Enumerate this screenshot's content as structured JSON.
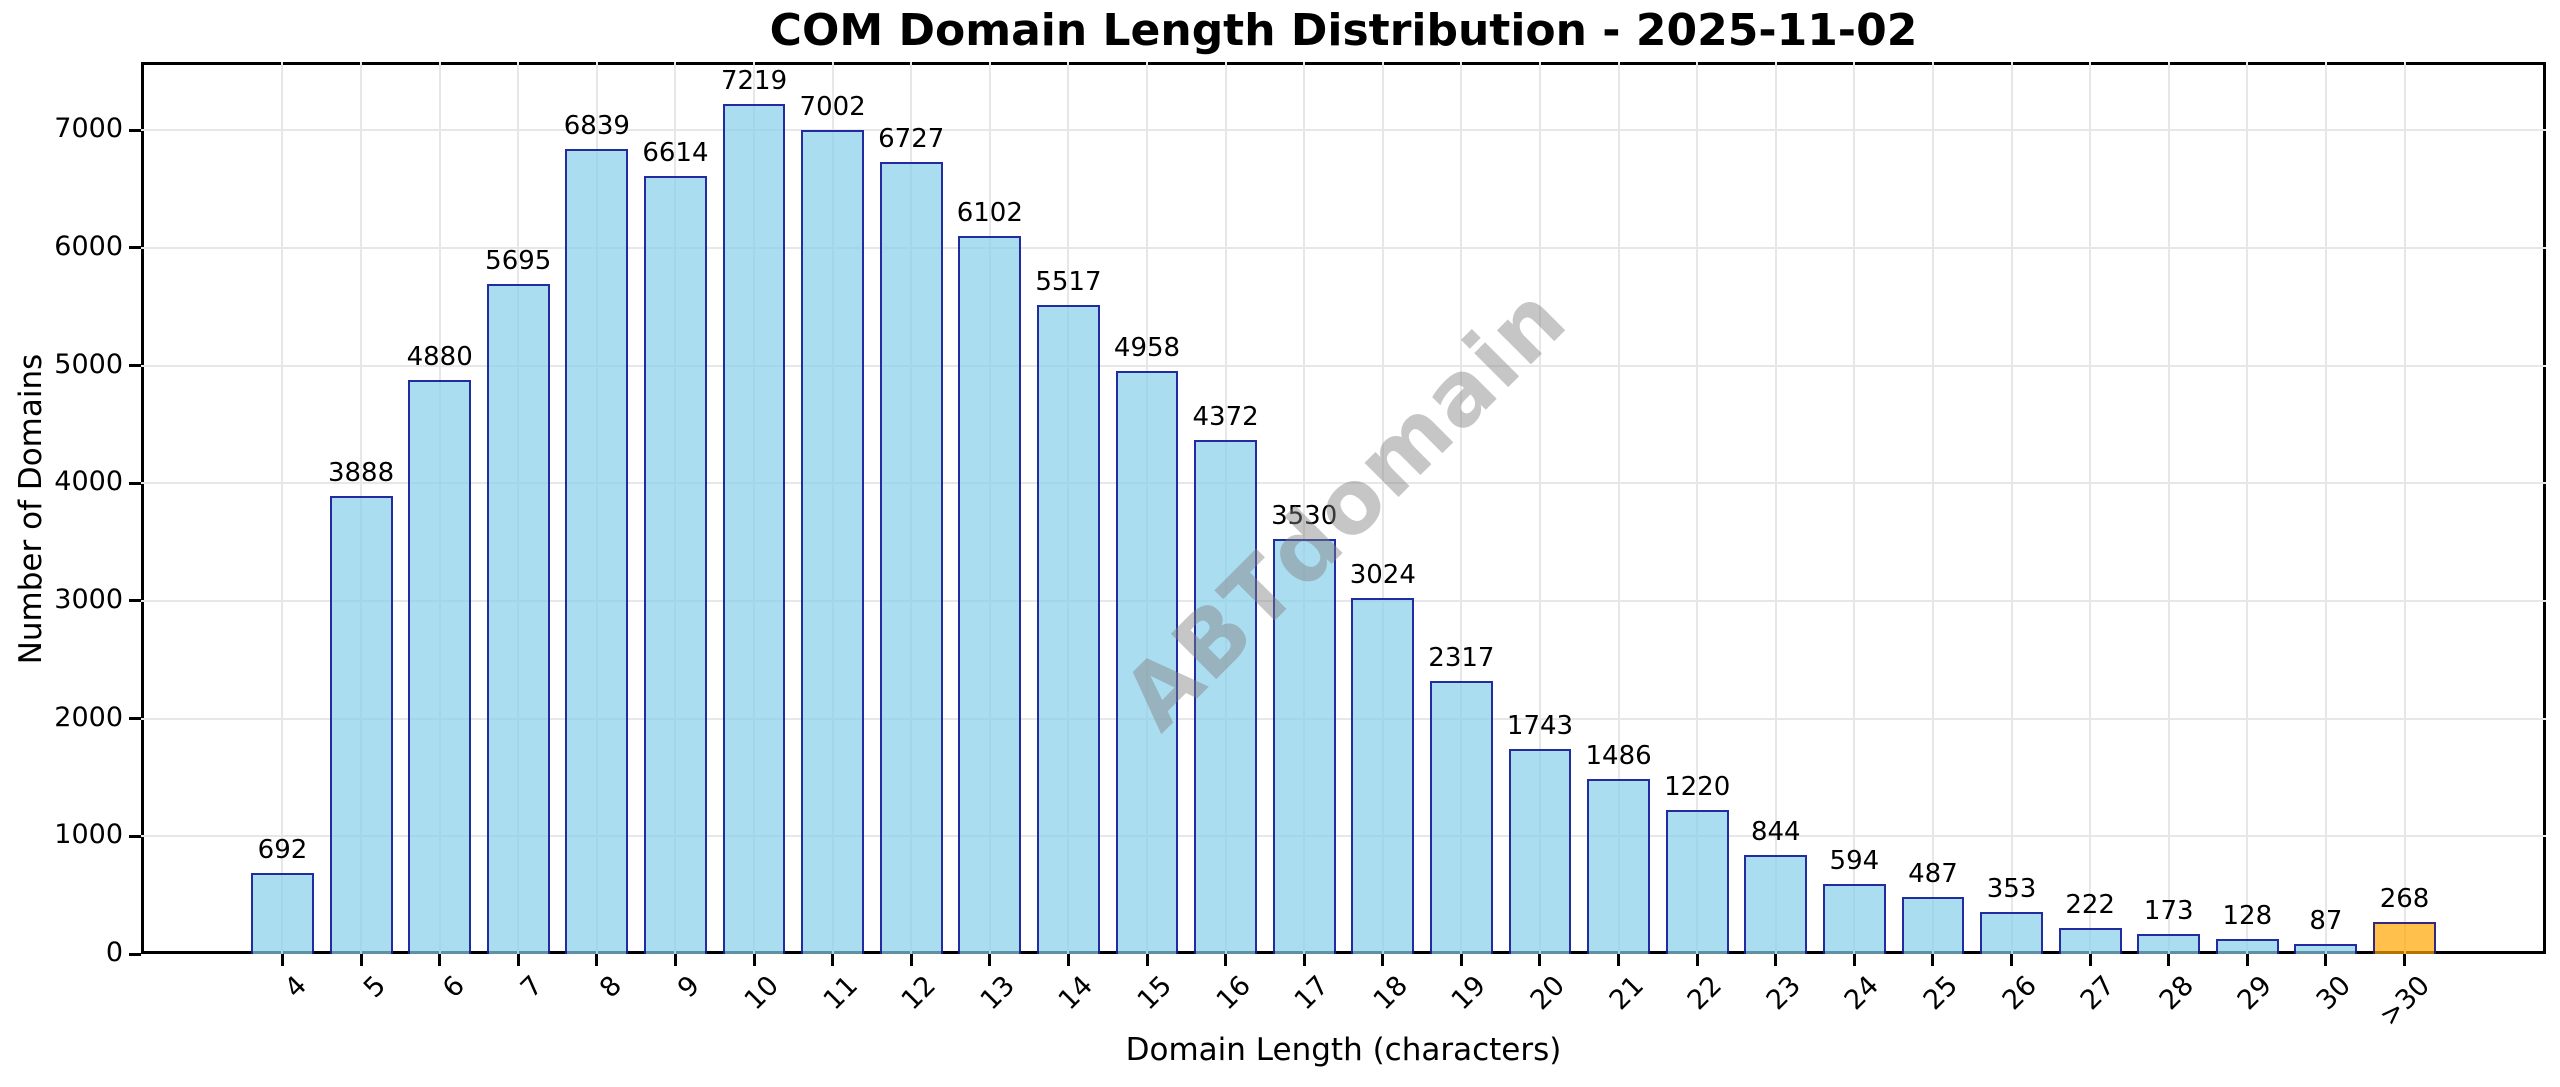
{
  "chart_data": {
    "type": "bar",
    "title": "COM Domain Length Distribution - 2025-11-02",
    "xlabel": "Domain Length (characters)",
    "ylabel": "Number of Domains",
    "watermark": "ABTdomain",
    "categories": [
      "4",
      "5",
      "6",
      "7",
      "8",
      "9",
      "10",
      "11",
      "12",
      "13",
      "14",
      "15",
      "16",
      "17",
      "18",
      "19",
      "20",
      "21",
      "22",
      "23",
      "24",
      "25",
      "26",
      "27",
      "28",
      "29",
      "30",
      ">30"
    ],
    "values": [
      692,
      3888,
      4880,
      5695,
      6839,
      6614,
      7219,
      7002,
      6727,
      6102,
      5517,
      4958,
      4372,
      3530,
      3024,
      2317,
      1743,
      1486,
      1220,
      844,
      594,
      487,
      353,
      222,
      173,
      128,
      87,
      268
    ],
    "yticks": [
      0,
      1000,
      2000,
      3000,
      4000,
      5000,
      6000,
      7000
    ],
    "ylim": [
      0,
      7580
    ],
    "grid": true,
    "legend_position": "none",
    "highlight_index": 27,
    "colors": {
      "bar_fill": "rgba(135,206,235,0.7)",
      "bar_edge": "rgba(0,0,139,0.8)",
      "highlight_fill": "rgba(255,165,0,0.7)",
      "highlight_edge": "rgba(0,0,139,0.8)",
      "grid": "#e7e7e7",
      "watermark_color": "#9a9a9a",
      "spine": "#000000"
    }
  }
}
